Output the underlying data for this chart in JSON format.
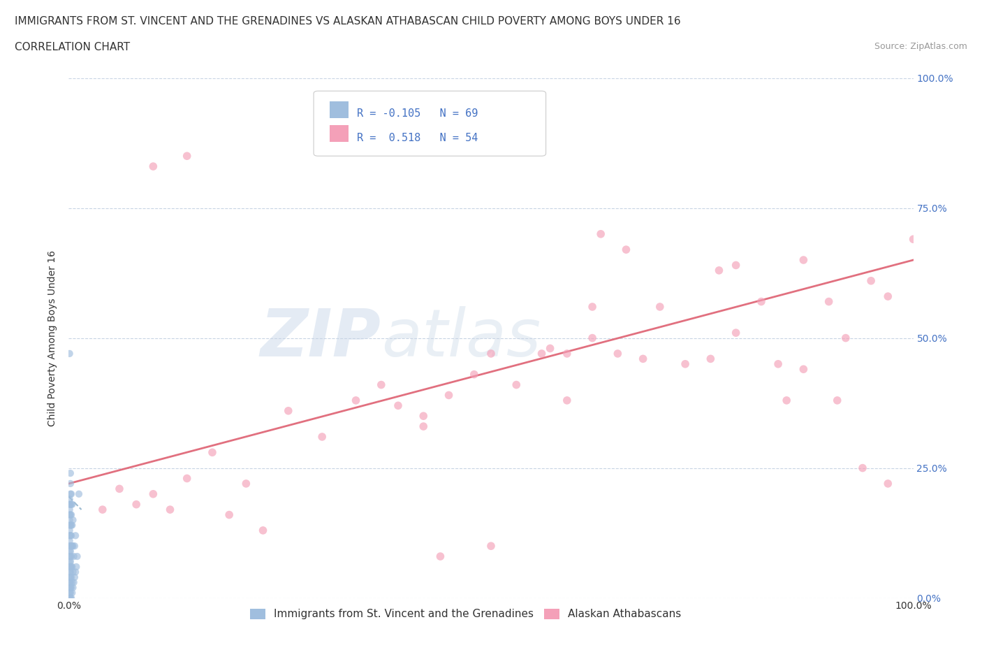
{
  "title": "IMMIGRANTS FROM ST. VINCENT AND THE GRENADINES VS ALASKAN ATHABASCAN CHILD POVERTY AMONG BOYS UNDER 16",
  "subtitle": "CORRELATION CHART",
  "source": "Source: ZipAtlas.com",
  "ylabel": "Child Poverty Among Boys Under 16",
  "blue_color": "#a0bede",
  "pink_color": "#f4a0b8",
  "reg_blue_color": "#8aaec8",
  "reg_pink_color": "#e06878",
  "text_color": "#333333",
  "axis_color": "#4472c4",
  "grid_color": "#c8d4e4",
  "legend_blue_label": "Immigrants from St. Vincent and the Grenadines",
  "legend_pink_label": "Alaskan Athabascans",
  "R_blue": "-0.105",
  "N_blue": "69",
  "R_pink": "0.518",
  "N_pink": "54",
  "blue_x": [
    0.001,
    0.001,
    0.001,
    0.001,
    0.001,
    0.001,
    0.001,
    0.001,
    0.001,
    0.001,
    0.001,
    0.001,
    0.001,
    0.001,
    0.001,
    0.001,
    0.001,
    0.001,
    0.001,
    0.001,
    0.002,
    0.002,
    0.002,
    0.002,
    0.002,
    0.002,
    0.002,
    0.002,
    0.002,
    0.002,
    0.002,
    0.002,
    0.002,
    0.002,
    0.002,
    0.002,
    0.002,
    0.002,
    0.003,
    0.003,
    0.003,
    0.003,
    0.003,
    0.003,
    0.003,
    0.003,
    0.003,
    0.003,
    0.003,
    0.004,
    0.004,
    0.004,
    0.004,
    0.004,
    0.004,
    0.005,
    0.005,
    0.005,
    0.005,
    0.006,
    0.006,
    0.007,
    0.007,
    0.008,
    0.008,
    0.009,
    0.01,
    0.012,
    0.001
  ],
  "blue_y": [
    0.0,
    0.01,
    0.02,
    0.03,
    0.04,
    0.05,
    0.06,
    0.07,
    0.08,
    0.09,
    0.1,
    0.11,
    0.12,
    0.13,
    0.14,
    0.15,
    0.16,
    0.17,
    0.18,
    0.19,
    0.0,
    0.01,
    0.02,
    0.03,
    0.04,
    0.05,
    0.06,
    0.07,
    0.08,
    0.09,
    0.1,
    0.12,
    0.14,
    0.16,
    0.18,
    0.2,
    0.22,
    0.24,
    0.0,
    0.02,
    0.04,
    0.06,
    0.08,
    0.1,
    0.12,
    0.14,
    0.16,
    0.18,
    0.2,
    0.01,
    0.03,
    0.06,
    0.1,
    0.14,
    0.18,
    0.02,
    0.05,
    0.1,
    0.15,
    0.03,
    0.08,
    0.04,
    0.1,
    0.05,
    0.12,
    0.06,
    0.08,
    0.2,
    0.47
  ],
  "pink_x": [
    0.04,
    0.06,
    0.08,
    0.1,
    0.12,
    0.14,
    0.17,
    0.19,
    0.21,
    0.23,
    0.26,
    0.3,
    0.34,
    0.37,
    0.39,
    0.42,
    0.45,
    0.48,
    0.5,
    0.53,
    0.56,
    0.59,
    0.62,
    0.65,
    0.68,
    0.7,
    0.73,
    0.76,
    0.79,
    0.82,
    0.84,
    0.87,
    0.9,
    0.92,
    0.95,
    0.97,
    1.0,
    0.57,
    0.59,
    0.77,
    0.79,
    0.85,
    0.87,
    0.91,
    0.94,
    0.97,
    0.63,
    0.66,
    0.42,
    0.44,
    0.14,
    0.1,
    0.5,
    0.62
  ],
  "pink_y": [
    0.17,
    0.21,
    0.18,
    0.2,
    0.17,
    0.23,
    0.28,
    0.16,
    0.22,
    0.13,
    0.36,
    0.31,
    0.38,
    0.41,
    0.37,
    0.35,
    0.39,
    0.43,
    0.47,
    0.41,
    0.47,
    0.38,
    0.5,
    0.47,
    0.46,
    0.56,
    0.45,
    0.46,
    0.51,
    0.57,
    0.45,
    0.65,
    0.57,
    0.5,
    0.61,
    0.58,
    0.69,
    0.48,
    0.47,
    0.63,
    0.64,
    0.38,
    0.44,
    0.38,
    0.25,
    0.22,
    0.7,
    0.67,
    0.33,
    0.08,
    0.85,
    0.83,
    0.1,
    0.56
  ],
  "pink_line_x0": 0.0,
  "pink_line_x1": 1.0,
  "pink_line_y0": 0.22,
  "pink_line_y1": 0.65,
  "blue_line_x0": 0.0,
  "blue_line_x1": 0.015,
  "blue_line_y0": 0.195,
  "blue_line_y1": 0.17,
  "yticks": [
    0.0,
    0.25,
    0.5,
    0.75,
    1.0
  ],
  "ytick_labels": [
    "0.0%",
    "25.0%",
    "50.0%",
    "75.0%",
    "100.0%"
  ],
  "xticks": [
    0.0,
    1.0
  ],
  "xtick_labels": [
    "0.0%",
    "100.0%"
  ],
  "xlim": [
    0.0,
    1.0
  ],
  "ylim": [
    0.0,
    1.0
  ],
  "title_fontsize": 11,
  "tick_fontsize": 10,
  "legend_fontsize": 11,
  "scatter_size_blue": 55,
  "scatter_size_pink": 70,
  "scatter_alpha": 0.65
}
